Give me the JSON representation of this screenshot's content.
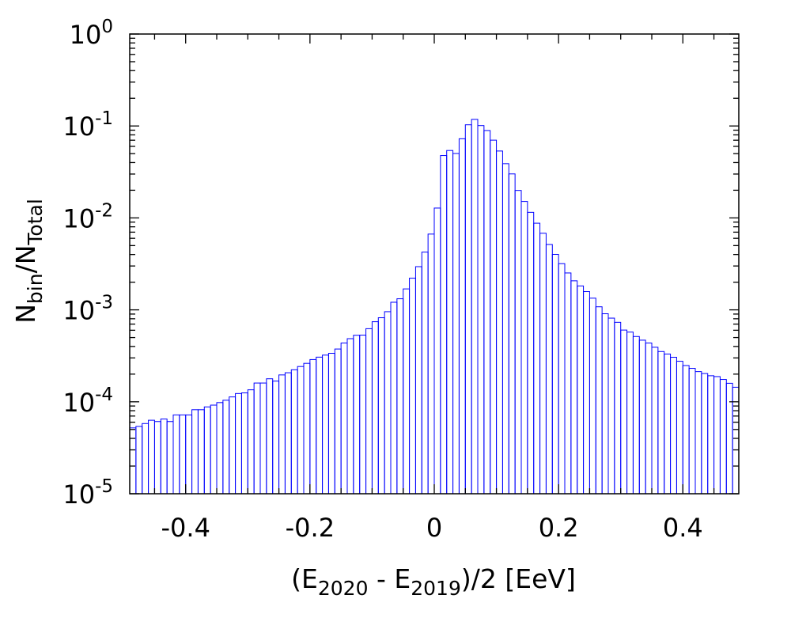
{
  "chart_data": {
    "type": "bar",
    "style": "step-histogram",
    "bar_color": "#0000ff",
    "xlabel": {
      "main": "(E",
      "sub1": "2020",
      "mid": " - E",
      "sub2": "2019",
      "tail": ")/2 [EeV]"
    },
    "ylabel": {
      "main": "N",
      "sub1": "bin",
      "mid": "/N",
      "sub2": "Total"
    },
    "xlim": [
      -0.49,
      0.49
    ],
    "ylim": [
      1e-05,
      1
    ],
    "yscale": "log",
    "bin_width": 0.01,
    "grid": false,
    "legend": "none",
    "x_ticks": [
      {
        "value": -0.4,
        "label": "-0.4"
      },
      {
        "value": -0.2,
        "label": "-0.2"
      },
      {
        "value": 0,
        "label": "0"
      },
      {
        "value": 0.2,
        "label": "0.2"
      },
      {
        "value": 0.4,
        "label": "0.4"
      }
    ],
    "y_ticks": [
      {
        "value": 1,
        "base": "10",
        "exp": "0"
      },
      {
        "value": 0.1,
        "base": "10",
        "exp": "-1"
      },
      {
        "value": 0.01,
        "base": "10",
        "exp": "-2"
      },
      {
        "value": 0.001,
        "base": "10",
        "exp": "-3"
      },
      {
        "value": 0.0001,
        "base": "10",
        "exp": "-4"
      },
      {
        "value": 1e-05,
        "base": "10",
        "exp": "-5"
      }
    ],
    "bins_start": [
      -0.49,
      -0.48,
      -0.47,
      -0.46,
      -0.45,
      -0.44,
      -0.43,
      -0.42,
      -0.41,
      -0.4,
      -0.39,
      -0.38,
      -0.37,
      -0.36,
      -0.35,
      -0.34,
      -0.33,
      -0.32,
      -0.31,
      -0.3,
      -0.29,
      -0.28,
      -0.27,
      -0.26,
      -0.25,
      -0.24,
      -0.23,
      -0.22,
      -0.21,
      -0.2,
      -0.19,
      -0.18,
      -0.17,
      -0.16,
      -0.15,
      -0.14,
      -0.13,
      -0.12,
      -0.11,
      -0.1,
      -0.09,
      -0.08,
      -0.07,
      -0.06,
      -0.05,
      -0.04,
      -0.03,
      -0.02,
      -0.01,
      0.0,
      0.01,
      0.02,
      0.03,
      0.04,
      0.05,
      0.06,
      0.07,
      0.08,
      0.09,
      0.1,
      0.11,
      0.12,
      0.13,
      0.14,
      0.15,
      0.16,
      0.17,
      0.18,
      0.19,
      0.2,
      0.21,
      0.22,
      0.23,
      0.24,
      0.25,
      0.26,
      0.27,
      0.28,
      0.29,
      0.3,
      0.31,
      0.32,
      0.33,
      0.34,
      0.35,
      0.36,
      0.37,
      0.38,
      0.39,
      0.4,
      0.41,
      0.42,
      0.43,
      0.44,
      0.45,
      0.46,
      0.47,
      0.48
    ],
    "values": [
      5.2e-05,
      5.4e-05,
      5.8e-05,
      6.3e-05,
      6.1e-05,
      6.5e-05,
      6.1e-05,
      7.2e-05,
      7.2e-05,
      7.2e-05,
      8.2e-05,
      8.2e-05,
      8.8e-05,
      9.2e-05,
      9.8e-05,
      0.000104,
      0.000113,
      0.000123,
      0.000125,
      0.000135,
      0.00016,
      0.00016,
      0.000178,
      0.000168,
      0.000196,
      0.000207,
      0.000223,
      0.000242,
      0.000262,
      0.000288,
      0.000306,
      0.000322,
      0.000337,
      0.000375,
      0.000436,
      0.000486,
      0.000529,
      0.000531,
      0.000624,
      0.000743,
      0.000821,
      0.000955,
      0.00121,
      0.00132,
      0.00169,
      0.00221,
      0.00295,
      0.00425,
      0.00667,
      0.0128,
      0.0477,
      0.0541,
      0.0502,
      0.0726,
      0.103,
      0.118,
      0.101,
      0.0892,
      0.0701,
      0.0534,
      0.0389,
      0.0301,
      0.0199,
      0.0151,
      0.0115,
      0.00876,
      0.00681,
      0.00514,
      0.00401,
      0.00318,
      0.00252,
      0.00207,
      0.00182,
      0.00158,
      0.00134,
      0.00108,
      0.000907,
      0.000813,
      0.000732,
      0.000603,
      0.000573,
      0.000513,
      0.000468,
      0.000436,
      0.000392,
      0.000352,
      0.000331,
      0.000305,
      0.000276,
      0.000248,
      0.000231,
      0.000213,
      0.000203,
      0.000192,
      0.000188,
      0.000175,
      0.000159,
      0.000144
    ]
  }
}
